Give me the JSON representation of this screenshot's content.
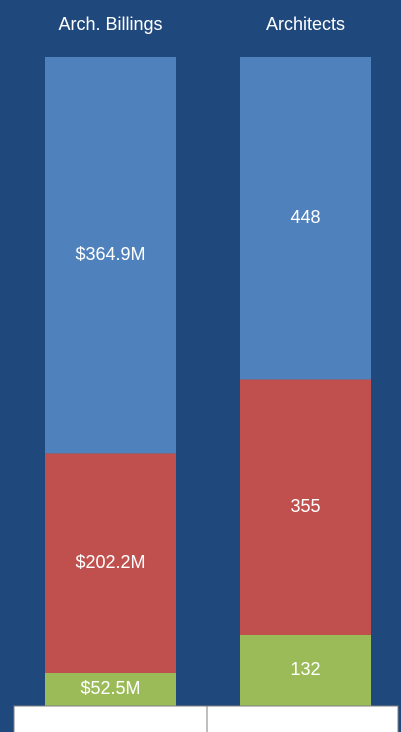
{
  "chart_data": {
    "type": "stacked_bar_100",
    "categories": [
      "Arch. Billings",
      "Architects"
    ],
    "series": [
      {
        "color": "#9bbb59",
        "values": [
          52.5,
          132
        ],
        "value_labels": [
          "$52.5M",
          "132"
        ]
      },
      {
        "color": "#c0504d",
        "values": [
          202.2,
          355
        ],
        "value_labels": [
          "$202.2M",
          "355"
        ]
      },
      {
        "color": "#4f81bd",
        "values": [
          364.9,
          448
        ],
        "value_labels": [
          "$364.9M",
          "448"
        ]
      }
    ]
  }
}
